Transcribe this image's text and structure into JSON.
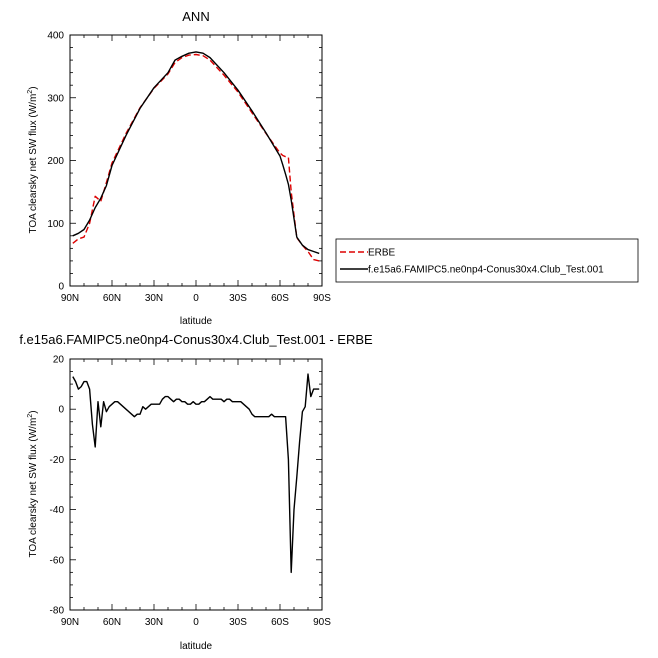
{
  "chart_data": [
    {
      "type": "line",
      "title": "ANN",
      "xlabel": "latitude",
      "ylabel": "TOA clearsky net SW flux (W/m",
      "ylabel_sup": "2",
      "ylabel_close": ")",
      "xlim": [
        90,
        -90
      ],
      "ylim": [
        0,
        400
      ],
      "xticks": [
        {
          "value": 90,
          "label": "90N"
        },
        {
          "value": 60,
          "label": "60N"
        },
        {
          "value": 30,
          "label": "30N"
        },
        {
          "value": 0,
          "label": "0"
        },
        {
          "value": -30,
          "label": "30S"
        },
        {
          "value": -60,
          "label": "60S"
        },
        {
          "value": -90,
          "label": "90S"
        }
      ],
      "yticks": [
        0,
        100,
        200,
        300,
        400
      ],
      "legend_position": "right",
      "series": [
        {
          "name": "ERBE",
          "color": "#dd0000",
          "dash": true,
          "x": [
            88,
            84,
            80,
            76,
            72,
            68,
            64,
            60,
            50,
            40,
            30,
            20,
            15,
            10,
            5,
            0,
            -5,
            -10,
            -20,
            -30,
            -40,
            -50,
            -60,
            -62,
            -64,
            -66,
            -68,
            -72,
            -76,
            -80,
            -84,
            -88
          ],
          "y": [
            68,
            75,
            78,
            100,
            143,
            135,
            165,
            196,
            243,
            284,
            315,
            338,
            356,
            364,
            368,
            369,
            367,
            360,
            336,
            309,
            276,
            243,
            212,
            208,
            206,
            205,
            150,
            77,
            65,
            55,
            42,
            40
          ]
        },
        {
          "name": "f.e15a6.FAMIPC5.ne0np4-Conus30x4.Club_Test.001",
          "color": "#000000",
          "dash": false,
          "x": [
            88,
            84,
            80,
            76,
            72,
            68,
            64,
            60,
            50,
            40,
            30,
            20,
            15,
            10,
            5,
            0,
            -5,
            -10,
            -20,
            -30,
            -40,
            -50,
            -60,
            -62,
            -64,
            -66,
            -68,
            -72,
            -76,
            -80,
            -84,
            -88
          ],
          "y": [
            80,
            84,
            90,
            105,
            125,
            140,
            160,
            192,
            240,
            283,
            316,
            340,
            360,
            366,
            371,
            373,
            371,
            364,
            340,
            312,
            279,
            244,
            207,
            193,
            178,
            162,
            137,
            78,
            65,
            58,
            55,
            52
          ]
        }
      ]
    },
    {
      "type": "line",
      "title": "f.e15a6.FAMIPC5.ne0np4-Conus30x4.Club_Test.001 - ERBE",
      "xlabel": "latitude",
      "ylabel": "TOA clearsky net SW flux (W/m",
      "ylabel_sup": "2",
      "ylabel_close": ")",
      "xlim": [
        90,
        -90
      ],
      "ylim": [
        -80,
        20
      ],
      "xticks": [
        {
          "value": 90,
          "label": "90N"
        },
        {
          "value": 60,
          "label": "60N"
        },
        {
          "value": 30,
          "label": "30N"
        },
        {
          "value": 0,
          "label": "0"
        },
        {
          "value": -30,
          "label": "30S"
        },
        {
          "value": -60,
          "label": "60S"
        },
        {
          "value": -90,
          "label": "90S"
        }
      ],
      "yticks": [
        -80,
        -60,
        -40,
        -20,
        0,
        20
      ],
      "series": [
        {
          "name": "",
          "color": "#000000",
          "dash": false,
          "x": [
            88,
            86,
            84,
            82,
            80,
            78,
            76,
            74,
            72,
            70,
            68,
            66,
            64,
            62,
            60,
            58,
            56,
            54,
            52,
            50,
            46,
            44,
            42,
            40,
            38,
            36,
            34,
            32,
            30,
            28,
            26,
            24,
            22,
            20,
            18,
            16,
            14,
            12,
            10,
            8,
            6,
            4,
            2,
            0,
            -2,
            -4,
            -6,
            -8,
            -10,
            -12,
            -14,
            -16,
            -18,
            -20,
            -22,
            -24,
            -26,
            -28,
            -30,
            -32,
            -34,
            -36,
            -38,
            -40,
            -42,
            -44,
            -46,
            -48,
            -50,
            -52,
            -54,
            -56,
            -58,
            -60,
            -62,
            -64,
            -66,
            -68,
            -70,
            -72,
            -74,
            -76,
            -78,
            -80,
            -82,
            -84,
            -86,
            -88
          ],
          "y": [
            13,
            11,
            8,
            9,
            11,
            11,
            8,
            -6,
            -15,
            3,
            -7,
            3,
            -1,
            1,
            2,
            3,
            3,
            2,
            1,
            0,
            -2,
            -3,
            -2,
            -2,
            1,
            0,
            1,
            2,
            2,
            2,
            2,
            4,
            5,
            5,
            4,
            3,
            4,
            4,
            3,
            3,
            2,
            2,
            3,
            2,
            2,
            3,
            3,
            4,
            5,
            4,
            4,
            4,
            4,
            3,
            4,
            4,
            3,
            3,
            3,
            3,
            2,
            1,
            0,
            -2,
            -3,
            -3,
            -3,
            -3,
            -3,
            -3,
            -2,
            -3,
            -3,
            -3,
            -3,
            -3,
            -20,
            -65,
            -40,
            -27,
            -13,
            -1,
            1,
            14,
            5,
            8,
            8,
            8
          ]
        }
      ]
    }
  ]
}
